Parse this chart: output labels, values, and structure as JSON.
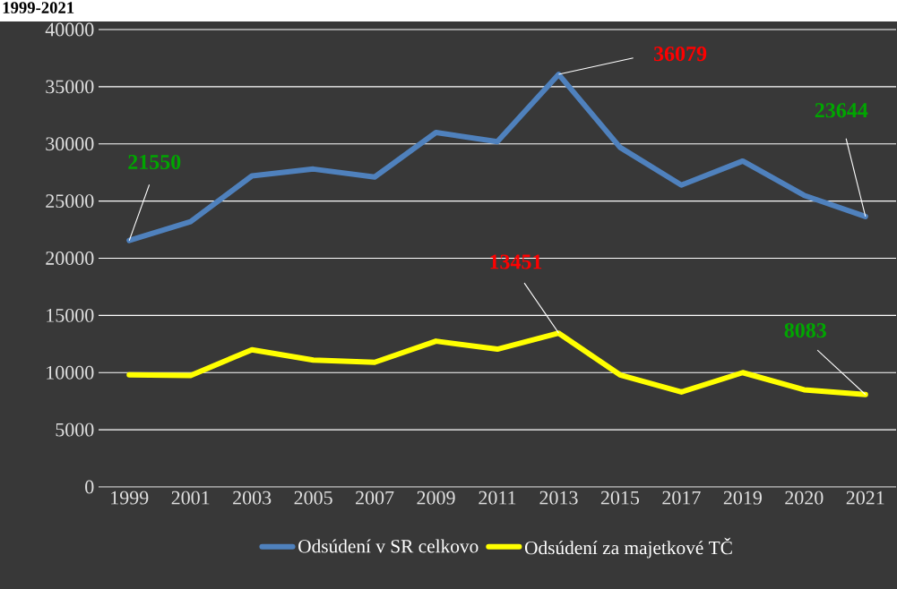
{
  "chart_data": {
    "type": "line",
    "title": "1999-2021",
    "categories": [
      "1999",
      "2001",
      "2003",
      "2005",
      "2007",
      "2009",
      "2011",
      "2013",
      "2015",
      "2017",
      "2019",
      "2020",
      "2021"
    ],
    "series": [
      {
        "name": "Odsúdení v SR celkovo",
        "color": "#4f81bd",
        "values": [
          21550,
          23200,
          27200,
          27800,
          27100,
          31000,
          30200,
          36079,
          29700,
          26400,
          28500,
          25500,
          23644
        ]
      },
      {
        "name": "Odsúdení za majetkové TČ",
        "color": "#ffff00",
        "values": [
          9800,
          9750,
          12000,
          11100,
          10900,
          12750,
          12050,
          13451,
          9800,
          8300,
          10000,
          8500,
          8083
        ]
      }
    ],
    "ylim": [
      0,
      40000
    ],
    "yticks": [
      0,
      5000,
      10000,
      15000,
      20000,
      25000,
      30000,
      35000,
      40000
    ],
    "grid": "y",
    "legend": "bottom",
    "marker": "none",
    "line_style": "solid",
    "annotations": [
      {
        "text": "21550",
        "x": "1999",
        "y": 21550
      },
      {
        "text": "36079",
        "x": "2013",
        "y": 36079
      },
      {
        "text": "23644",
        "x": "2021",
        "y": 23644
      },
      {
        "text": "13451",
        "x": "2013",
        "y": 13451
      },
      {
        "text": "8083",
        "x": "2021",
        "y": 8083
      }
    ]
  }
}
